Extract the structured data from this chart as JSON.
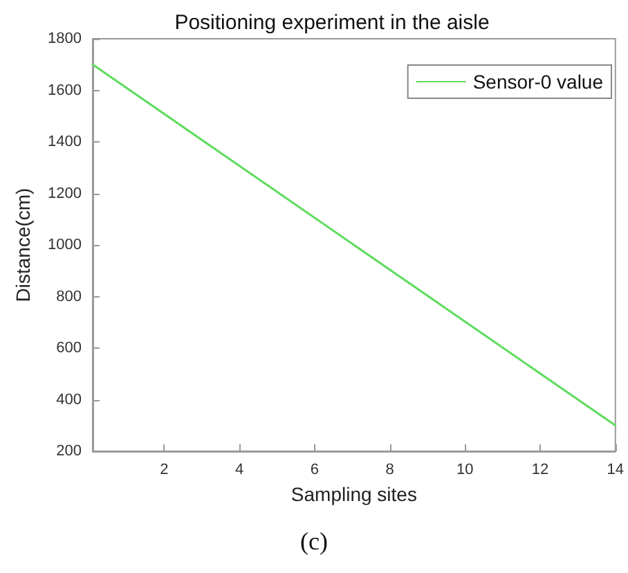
{
  "chart_data": {
    "type": "line",
    "title": "Positioning experiment in the aisle",
    "xlabel": "Sampling sites",
    "ylabel": "Distance(cm)",
    "annotations": [
      "(c)"
    ],
    "series": [
      {
        "name": "Sensor-0 value",
        "color": "#5ddc5d",
        "x": [
          0.1,
          14
        ],
        "values": [
          1700,
          300
        ]
      }
    ],
    "xlim": [
      0.1,
      14
    ],
    "xticks": [
      2,
      4,
      6,
      8,
      10,
      12,
      14
    ],
    "ylim": [
      200,
      1800
    ],
    "yticks": [
      200,
      400,
      600,
      800,
      1000,
      1200,
      1400,
      1600,
      1800
    ],
    "grid": false,
    "legend": "top right",
    "marker": "none",
    "line_style": "solid"
  }
}
